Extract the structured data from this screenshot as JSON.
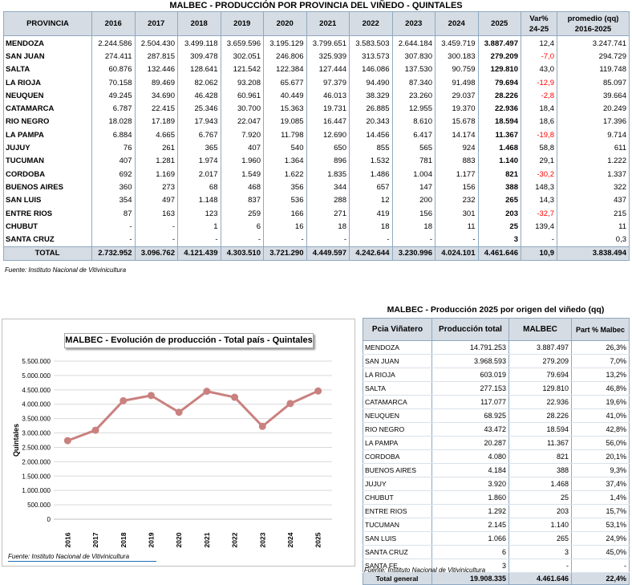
{
  "top_table": {
    "title": "MALBEC - PRODUCCIÓN POR PROVINCIA DEL VIÑEDO - QUINTALES",
    "headers": {
      "provincia": "PROVINCIA",
      "years": [
        "2016",
        "2017",
        "2018",
        "2019",
        "2020",
        "2021",
        "2022",
        "2023",
        "2024",
        "2025"
      ],
      "var_line1": "Var%",
      "var_line2": "24-25",
      "prom_line1": "promedio (qq)",
      "prom_line2": "2016-2025"
    },
    "rows": [
      {
        "province": "MENDOZA",
        "values": [
          "2.244.586",
          "2.504.430",
          "3.499.118",
          "3.659.596",
          "3.195.129",
          "3.799.651",
          "3.583.503",
          "2.644.184",
          "3.459.719",
          "3.887.497"
        ],
        "var": "12,4",
        "avg": "3.247.741",
        "neg": false
      },
      {
        "province": "SAN JUAN",
        "values": [
          "274.411",
          "287.815",
          "309.478",
          "302.051",
          "246.806",
          "325.939",
          "313.573",
          "307.830",
          "300.183",
          "279.209"
        ],
        "var": "-7,0",
        "avg": "294.729",
        "neg": true
      },
      {
        "province": "SALTA",
        "values": [
          "60.876",
          "132.446",
          "128.641",
          "121.542",
          "122.384",
          "127.444",
          "146.086",
          "137.530",
          "90.759",
          "129.810"
        ],
        "var": "43,0",
        "avg": "119.748",
        "neg": false
      },
      {
        "province": "LA RIOJA",
        "values": [
          "70.158",
          "89.469",
          "82.062",
          "93.208",
          "65.677",
          "97.379",
          "94.490",
          "87.340",
          "91.498",
          "79.694"
        ],
        "var": "-12,9",
        "avg": "85.097",
        "neg": true
      },
      {
        "province": "NEUQUEN",
        "values": [
          "49.245",
          "34.690",
          "46.428",
          "60.961",
          "40.449",
          "46.013",
          "38.329",
          "23.260",
          "29.037",
          "28.226"
        ],
        "var": "-2,8",
        "avg": "39.664",
        "neg": true
      },
      {
        "province": "CATAMARCA",
        "values": [
          "6.787",
          "22.415",
          "25.346",
          "30.700",
          "15.363",
          "19.731",
          "26.885",
          "12.955",
          "19.370",
          "22.936"
        ],
        "var": "18,4",
        "avg": "20.249",
        "neg": false
      },
      {
        "province": "RIO NEGRO",
        "values": [
          "18.028",
          "17.189",
          "17.943",
          "22.047",
          "19.085",
          "16.447",
          "20.343",
          "8.610",
          "15.678",
          "18.594"
        ],
        "var": "18,6",
        "avg": "17.396",
        "neg": false
      },
      {
        "province": "LA PAMPA",
        "values": [
          "6.884",
          "4.665",
          "6.767",
          "7.920",
          "11.798",
          "12.690",
          "14.456",
          "6.417",
          "14.174",
          "11.367"
        ],
        "var": "-19,8",
        "avg": "9.714",
        "neg": true
      },
      {
        "province": "JUJUY",
        "values": [
          "76",
          "261",
          "365",
          "407",
          "540",
          "650",
          "855",
          "565",
          "924",
          "1.468"
        ],
        "var": "58,8",
        "avg": "611",
        "neg": false
      },
      {
        "province": "TUCUMAN",
        "values": [
          "407",
          "1.281",
          "1.974",
          "1.960",
          "1.364",
          "896",
          "1.532",
          "781",
          "883",
          "1.140"
        ],
        "var": "29,1",
        "avg": "1.222",
        "neg": false
      },
      {
        "province": "CORDOBA",
        "values": [
          "692",
          "1.169",
          "2.017",
          "1.549",
          "1.622",
          "1.835",
          "1.486",
          "1.004",
          "1.177",
          "821"
        ],
        "var": "-30,2",
        "avg": "1.337",
        "neg": true
      },
      {
        "province": "BUENOS AIRES",
        "values": [
          "360",
          "273",
          "68",
          "468",
          "356",
          "344",
          "657",
          "147",
          "156",
          "388"
        ],
        "var": "148,3",
        "avg": "322",
        "neg": false
      },
      {
        "province": "SAN LUIS",
        "values": [
          "354",
          "497",
          "1.148",
          "837",
          "536",
          "288",
          "12",
          "200",
          "232",
          "265"
        ],
        "var": "14,3",
        "avg": "437",
        "neg": false
      },
      {
        "province": "ENTRE RIOS",
        "values": [
          "87",
          "163",
          "123",
          "259",
          "166",
          "271",
          "419",
          "156",
          "301",
          "203"
        ],
        "var": "-32,7",
        "avg": "215",
        "neg": true
      },
      {
        "province": "CHUBUT",
        "values": [
          "-",
          "-",
          "1",
          "6",
          "16",
          "18",
          "18",
          "18",
          "11",
          "25"
        ],
        "var": "139,4",
        "avg": "11",
        "neg": false
      },
      {
        "province": "SANTA CRUZ",
        "values": [
          "-",
          "-",
          "-",
          "-",
          "-",
          "-",
          "-",
          "-",
          "-",
          "3"
        ],
        "var": "-",
        "avg": "0,3",
        "neg": false
      }
    ],
    "total": {
      "label": "TOTAL",
      "values": [
        "2.732.952",
        "3.096.762",
        "4.121.439",
        "4.303.510",
        "3.721.290",
        "4.449.597",
        "4.242.644",
        "3.230.996",
        "4.024.101",
        "4.461.646"
      ],
      "var": "10,9",
      "avg": "3.838.494"
    },
    "source": "Fuente: Instituto Nacional de Vitivinicultura"
  },
  "chart_data": {
    "type": "line",
    "title": "MALBEC - Evolución de producción - Total país - Quintales",
    "xlabel": "",
    "ylabel": "Quintales",
    "categories": [
      "2016",
      "2017",
      "2018",
      "2019",
      "2020",
      "2021",
      "2022",
      "2023",
      "2024",
      "2025"
    ],
    "series": [
      {
        "name": "Total país",
        "values": [
          2732952,
          3096762,
          4121439,
          4303510,
          3721290,
          4449597,
          4242644,
          3230996,
          4024101,
          4461646
        ]
      }
    ],
    "ylim": [
      0,
      5500000
    ],
    "yticks": [
      0,
      500000,
      1000000,
      1500000,
      2000000,
      2500000,
      3000000,
      3500000,
      4000000,
      4500000,
      5000000,
      5500000
    ],
    "ytick_labels": [
      "0",
      "500.000",
      "1.000.000",
      "1.500.000",
      "2.000.000",
      "2.500.000",
      "3.000.000",
      "3.500.000",
      "4.000.000",
      "4.500.000",
      "5.000.000",
      "5.500.000"
    ],
    "grid": true,
    "line_color": "#c9817f",
    "source": "Fuente: Instituto Nacional de Vitivinicultura"
  },
  "origin_table": {
    "title": "MALBEC - Producción 2025 por origen del viñedo (qq)",
    "headers": {
      "pcia": "Pcia Viñatero",
      "total": "Producción total",
      "malbec": "MALBEC",
      "part": "Part % Malbec"
    },
    "rows": [
      {
        "province": "MENDOZA",
        "total": "14.791.253",
        "malbec": "3.887.497",
        "part": "26,3%"
      },
      {
        "province": "SAN JUAN",
        "total": "3.968.593",
        "malbec": "279.209",
        "part": "7,0%"
      },
      {
        "province": "LA RIOJA",
        "total": "603.019",
        "malbec": "79.694",
        "part": "13,2%"
      },
      {
        "province": "SALTA",
        "total": "277.153",
        "malbec": "129.810",
        "part": "46,8%"
      },
      {
        "province": "CATAMARCA",
        "total": "117.077",
        "malbec": "22.936",
        "part": "19,6%"
      },
      {
        "province": "NEUQUEN",
        "total": "68.925",
        "malbec": "28.226",
        "part": "41,0%"
      },
      {
        "province": "RIO NEGRO",
        "total": "43.472",
        "malbec": "18.594",
        "part": "42,8%"
      },
      {
        "province": "LA PAMPA",
        "total": "20.287",
        "malbec": "11.367",
        "part": "56,0%"
      },
      {
        "province": "CORDOBA",
        "total": "4.080",
        "malbec": "821",
        "part": "20,1%"
      },
      {
        "province": "BUENOS AIRES",
        "total": "4.184",
        "malbec": "388",
        "part": "9,3%"
      },
      {
        "province": "JUJUY",
        "total": "3.920",
        "malbec": "1.468",
        "part": "37,4%"
      },
      {
        "province": "CHUBUT",
        "total": "1.860",
        "malbec": "25",
        "part": "1,4%"
      },
      {
        "province": "ENTRE RIOS",
        "total": "1.292",
        "malbec": "203",
        "part": "15,7%"
      },
      {
        "province": "TUCUMAN",
        "total": "2.145",
        "malbec": "1.140",
        "part": "53,1%"
      },
      {
        "province": "SAN LUIS",
        "total": "1.066",
        "malbec": "265",
        "part": "24,9%"
      },
      {
        "province": "SANTA CRUZ",
        "total": "6",
        "malbec": "3",
        "part": "45,0%"
      },
      {
        "province": "SANTA FE",
        "total": "3",
        "malbec": "-",
        "part": "-"
      }
    ],
    "total": {
      "label": "Total general",
      "total": "19.908.335",
      "malbec": "4.461.646",
      "part": "22,4%"
    },
    "source": "Fuente: Instituto Nacional de Vitivinicultura"
  }
}
